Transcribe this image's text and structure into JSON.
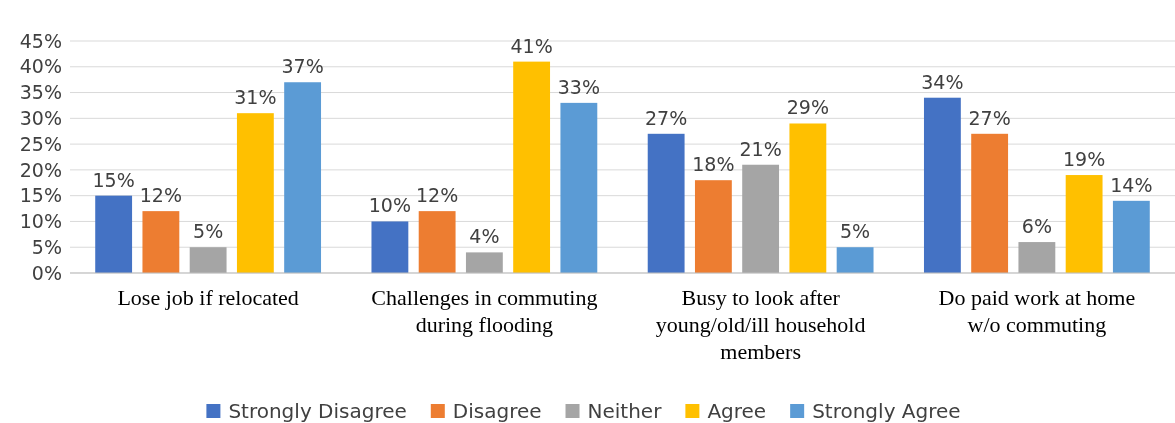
{
  "chart_data": {
    "type": "bar",
    "categories": [
      "Lose job if relocated",
      "Challenges in commuting during flooding",
      "Busy to look after young/old/ill household members",
      "Do paid work at home w/o commuting"
    ],
    "series": [
      {
        "name": "Strongly Disagree",
        "color": "#4472c4",
        "values": [
          15,
          10,
          27,
          34
        ],
        "value_labels": [
          "15%",
          "10%",
          "27%",
          "34%"
        ]
      },
      {
        "name": "Disagree",
        "color": "#ed7d31",
        "values": [
          12,
          12,
          18,
          27
        ],
        "value_labels": [
          "12%",
          "12%",
          "18%",
          "27%"
        ]
      },
      {
        "name": "Neither",
        "color": "#a5a5a5",
        "values": [
          5,
          4,
          21,
          6
        ],
        "value_labels": [
          "5%",
          "4%",
          "21%",
          "6%"
        ]
      },
      {
        "name": "Agree",
        "color": "#ffc000",
        "values": [
          31,
          41,
          29,
          19
        ],
        "value_labels": [
          "31%",
          "41%",
          "29%",
          "19%"
        ]
      },
      {
        "name": "Strongly Agree",
        "color": "#5b9bd5",
        "values": [
          37,
          33,
          5,
          14
        ],
        "value_labels": [
          "37%",
          "33%",
          "5%",
          "14%"
        ]
      }
    ],
    "ylim": [
      0,
      45
    ],
    "yticks": [
      {
        "value": 0,
        "label": "0%"
      },
      {
        "value": 5,
        "label": "5%"
      },
      {
        "value": 10,
        "label": "10%"
      },
      {
        "value": 15,
        "label": "15%"
      },
      {
        "value": 20,
        "label": "20%"
      },
      {
        "value": 25,
        "label": "25%"
      },
      {
        "value": 30,
        "label": "30%"
      },
      {
        "value": 35,
        "label": "35%"
      },
      {
        "value": 40,
        "label": "40%"
      },
      {
        "value": 45,
        "label": "45%"
      }
    ],
    "grid": "y",
    "legend": "bottom"
  }
}
